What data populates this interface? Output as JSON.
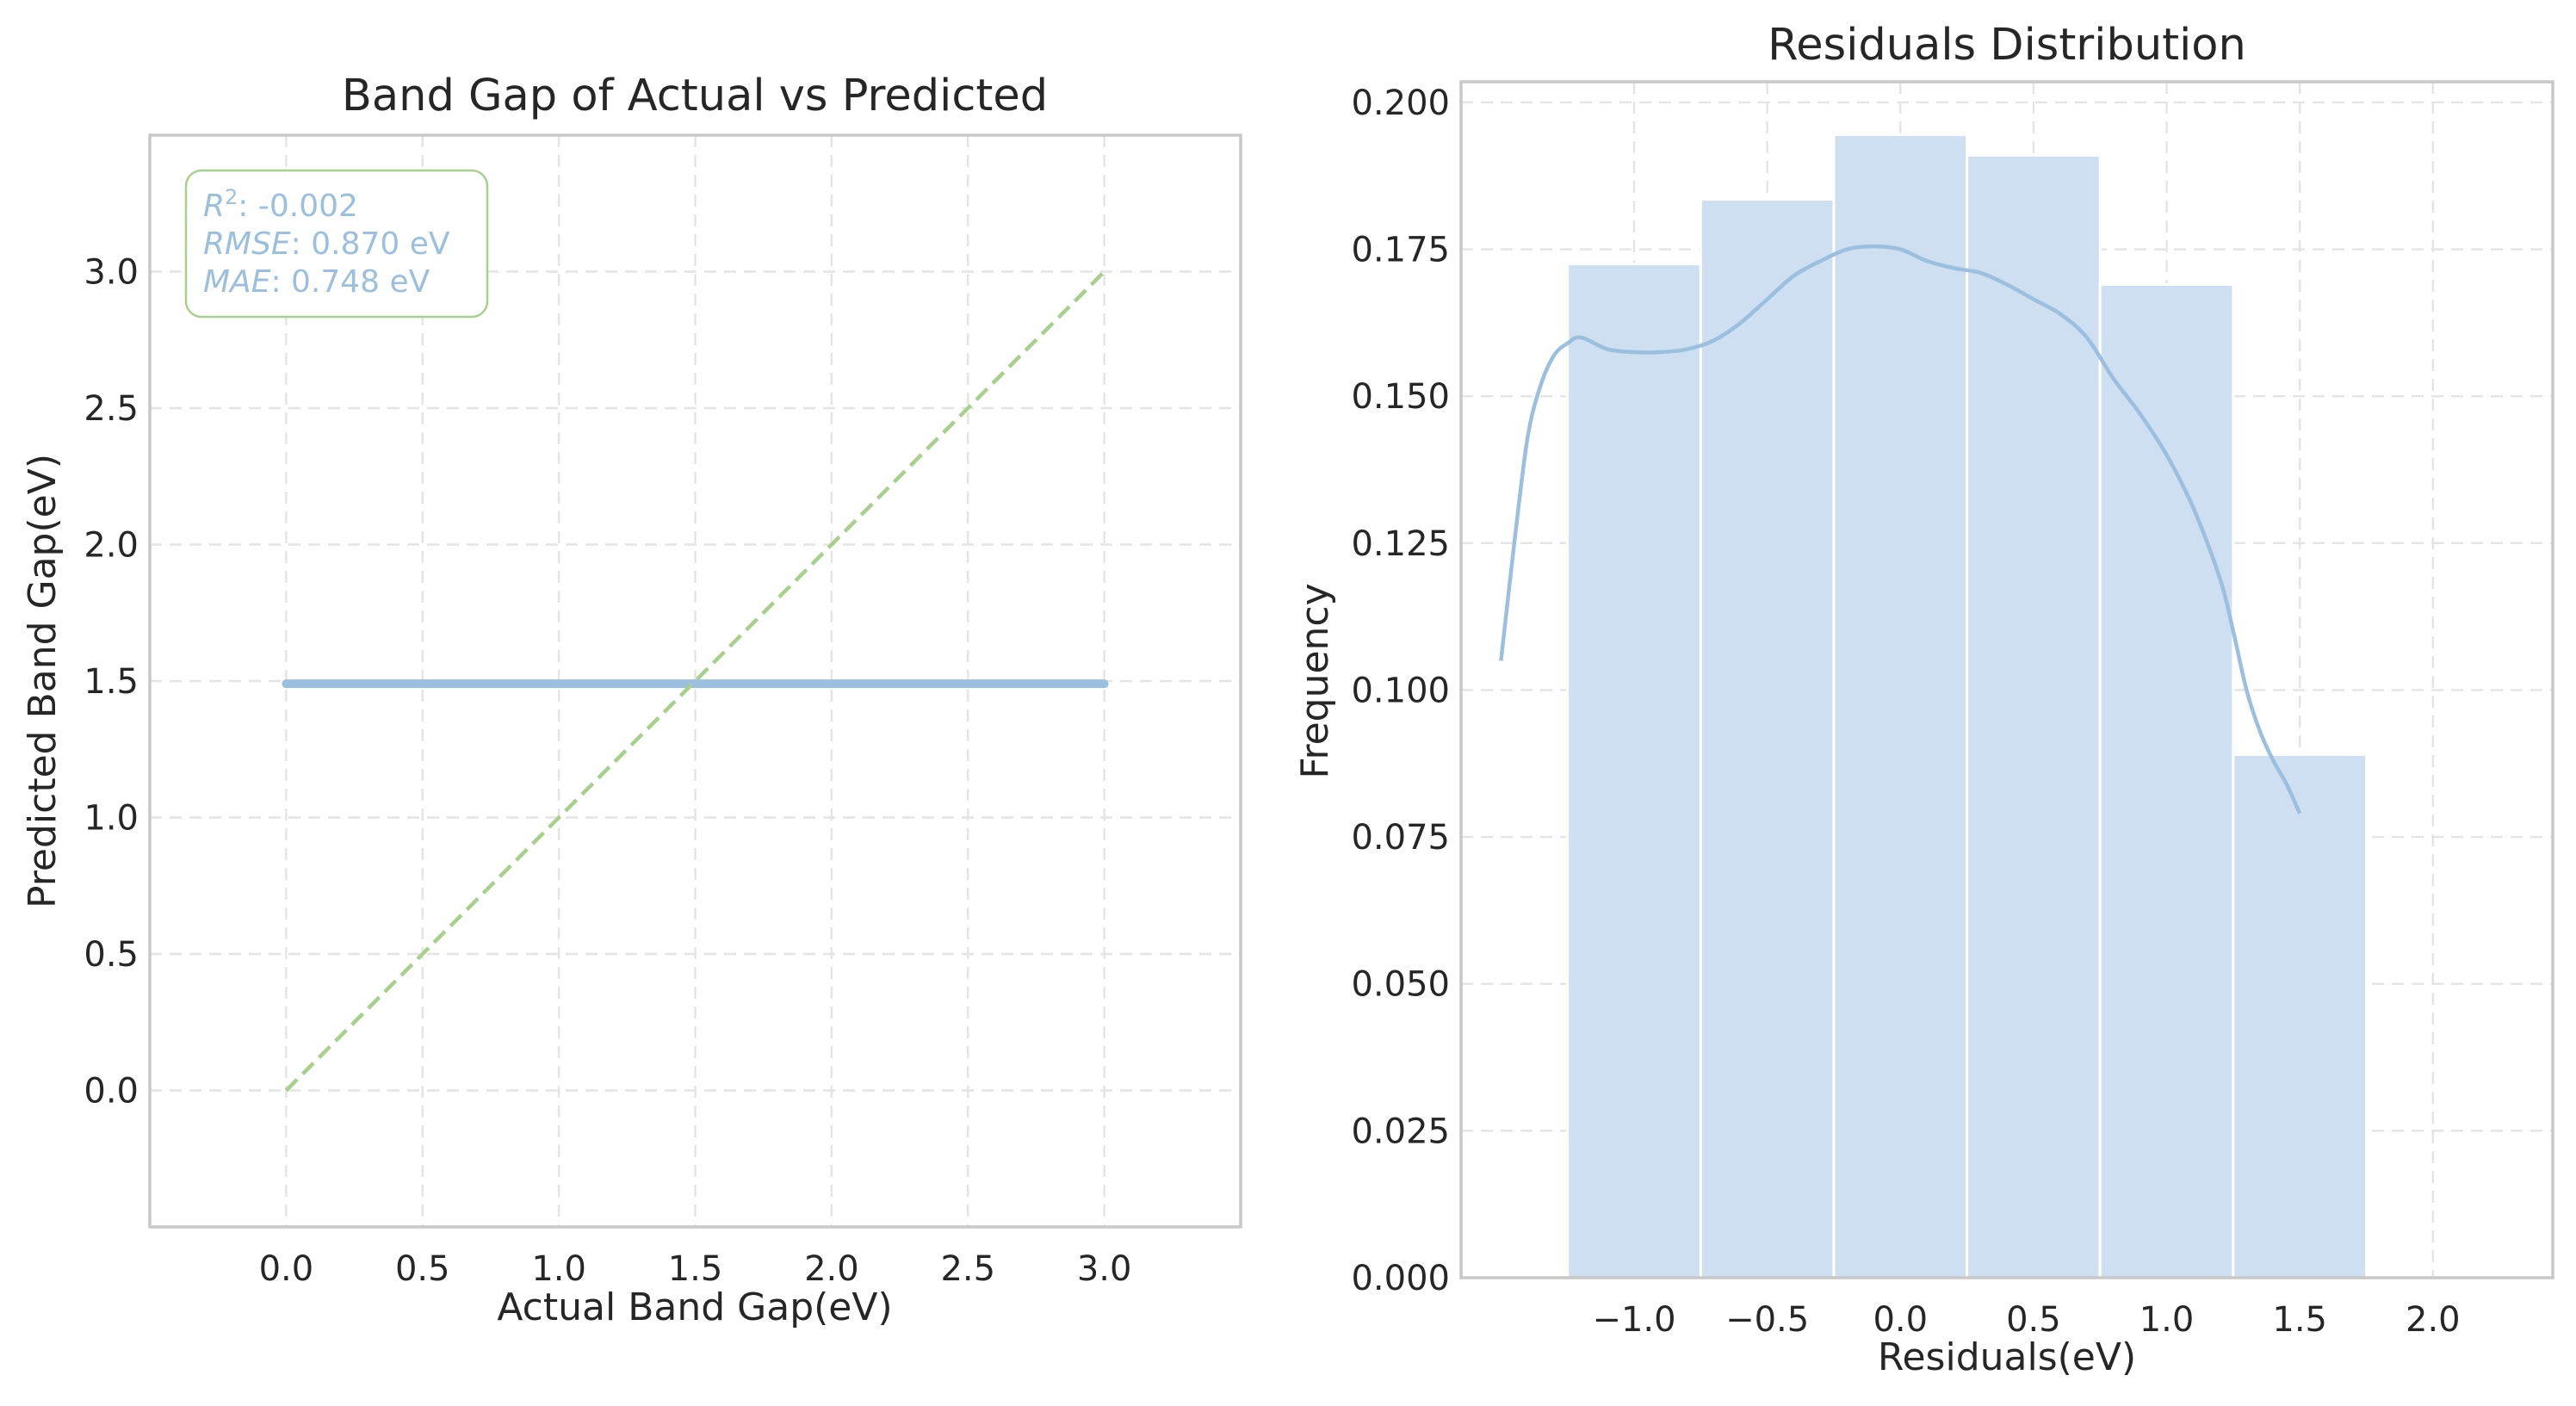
{
  "colors": {
    "predicted": "#9bbfde",
    "ideal": "#a8d08d",
    "hist_fill": "#cddff0",
    "kde": "#9bbfde",
    "stats_text": "#9bbfde",
    "stats_border": "#a8d08d"
  },
  "chart_data": [
    {
      "type": "line",
      "title": "Band Gap of Actual vs Predicted",
      "xlabel": "Actual Band Gap(eV)",
      "ylabel": "Predicted Band Gap(eV)",
      "xlim": [
        -0.5,
        3.5
      ],
      "ylim": [
        -0.5,
        3.5
      ],
      "xticks": [
        0.0,
        0.5,
        1.0,
        1.5,
        2.0,
        2.5,
        3.0
      ],
      "yticks": [
        0.0,
        0.5,
        1.0,
        1.5,
        2.0,
        2.5,
        3.0
      ],
      "grid": true,
      "series": [
        {
          "style": "solid-thick",
          "color": "#9bbfde",
          "x": [
            0.0,
            3.0
          ],
          "y": [
            1.49,
            1.49
          ]
        },
        {
          "style": "dashed",
          "color": "#a8d08d",
          "x": [
            0.0,
            3.0
          ],
          "y": [
            0.0,
            3.0
          ]
        }
      ],
      "stats_box": {
        "placement": "top-left",
        "lines": [
          {
            "label": "R",
            "sup": "2",
            "value": ": -0.002"
          },
          {
            "label": "RMSE",
            "sup": "",
            "value": ": 0.870 eV"
          },
          {
            "label": "MAE",
            "sup": "",
            "value": ": 0.748 eV"
          }
        ]
      }
    },
    {
      "type": "bar",
      "title": "Residuals Distribution",
      "xlabel": "Residuals(eV)",
      "ylabel": "Frequency",
      "xlim": [
        -1.65,
        2.45
      ],
      "ylim": [
        0.0,
        0.2035
      ],
      "xticks": [
        -1.0,
        -0.5,
        0.0,
        0.5,
        1.0,
        1.5,
        2.0
      ],
      "xtick_labels": [
        "−1.0",
        "−0.5",
        "0.0",
        "0.5",
        "1.0",
        "1.5",
        "2.0"
      ],
      "yticks": [
        0.0,
        0.025,
        0.05,
        0.075,
        0.1,
        0.125,
        0.15,
        0.175,
        0.2
      ],
      "ytick_labels": [
        "0.000",
        "0.025",
        "0.050",
        "0.075",
        "0.100",
        "0.125",
        "0.150",
        "0.175",
        "0.200"
      ],
      "grid": true,
      "bin_edges": [
        -1.25,
        -0.75,
        -0.25,
        0.25,
        0.75,
        1.25,
        1.75
      ],
      "values": [
        0.1725,
        0.1835,
        0.1945,
        0.191,
        0.169,
        0.089
      ],
      "kde": {
        "x": [
          -1.5,
          -1.45,
          -1.4,
          -1.35,
          -1.3,
          -1.25,
          -1.2,
          -1.1,
          -1.0,
          -0.9,
          -0.8,
          -0.7,
          -0.6,
          -0.5,
          -0.4,
          -0.3,
          -0.2,
          -0.1,
          0.0,
          0.1,
          0.2,
          0.3,
          0.4,
          0.5,
          0.6,
          0.7,
          0.8,
          0.9,
          1.0,
          1.1,
          1.2,
          1.25,
          1.3,
          1.35,
          1.4,
          1.45,
          1.5
        ],
        "y": [
          0.105,
          0.125,
          0.143,
          0.152,
          0.157,
          0.159,
          0.16,
          0.158,
          0.1575,
          0.1575,
          0.158,
          0.1595,
          0.1625,
          0.1665,
          0.1705,
          0.173,
          0.175,
          0.1755,
          0.175,
          0.173,
          0.1718,
          0.171,
          0.169,
          0.1665,
          0.164,
          0.16,
          0.153,
          0.147,
          0.14,
          0.131,
          0.119,
          0.11,
          0.1,
          0.093,
          0.088,
          0.084,
          0.079
        ]
      }
    }
  ]
}
